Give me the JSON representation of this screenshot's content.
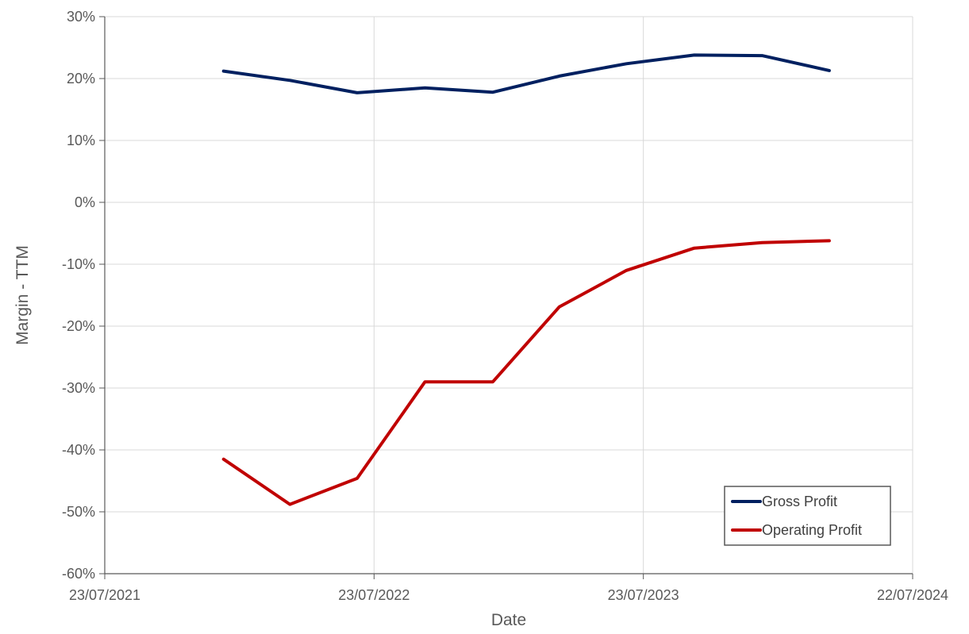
{
  "chart_data": {
    "type": "line",
    "title": "",
    "xlabel": "Date",
    "ylabel": "Margin - TTM",
    "x_ticks": [
      "23/07/2021",
      "23/07/2022",
      "23/07/2023",
      "22/07/2024"
    ],
    "xlim": [
      "2021-07-23",
      "2024-07-22"
    ],
    "y_ticks": [
      "30%",
      "20%",
      "10%",
      "0%",
      "-10%",
      "-20%",
      "-30%",
      "-40%",
      "-50%",
      "-60%"
    ],
    "ylim": [
      -60,
      30
    ],
    "y_unit": "%",
    "grid": true,
    "legend_position": "bottom-right",
    "x": [
      "2021-12-31",
      "2022-03-31",
      "2022-06-30",
      "2022-09-30",
      "2022-12-31",
      "2023-03-31",
      "2023-06-30",
      "2023-09-30",
      "2023-12-31",
      "2024-03-31"
    ],
    "series": [
      {
        "name": "Gross Profit",
        "color": "#002060",
        "values": [
          21.2,
          19.7,
          17.7,
          18.5,
          17.8,
          20.4,
          22.4,
          23.8,
          23.7,
          21.3
        ]
      },
      {
        "name": "Operating Profit",
        "color": "#C00000",
        "values": [
          -41.5,
          -48.8,
          -44.6,
          -29.0,
          -29.0,
          -16.9,
          -11.0,
          -7.4,
          -6.5,
          -6.2
        ]
      }
    ]
  }
}
